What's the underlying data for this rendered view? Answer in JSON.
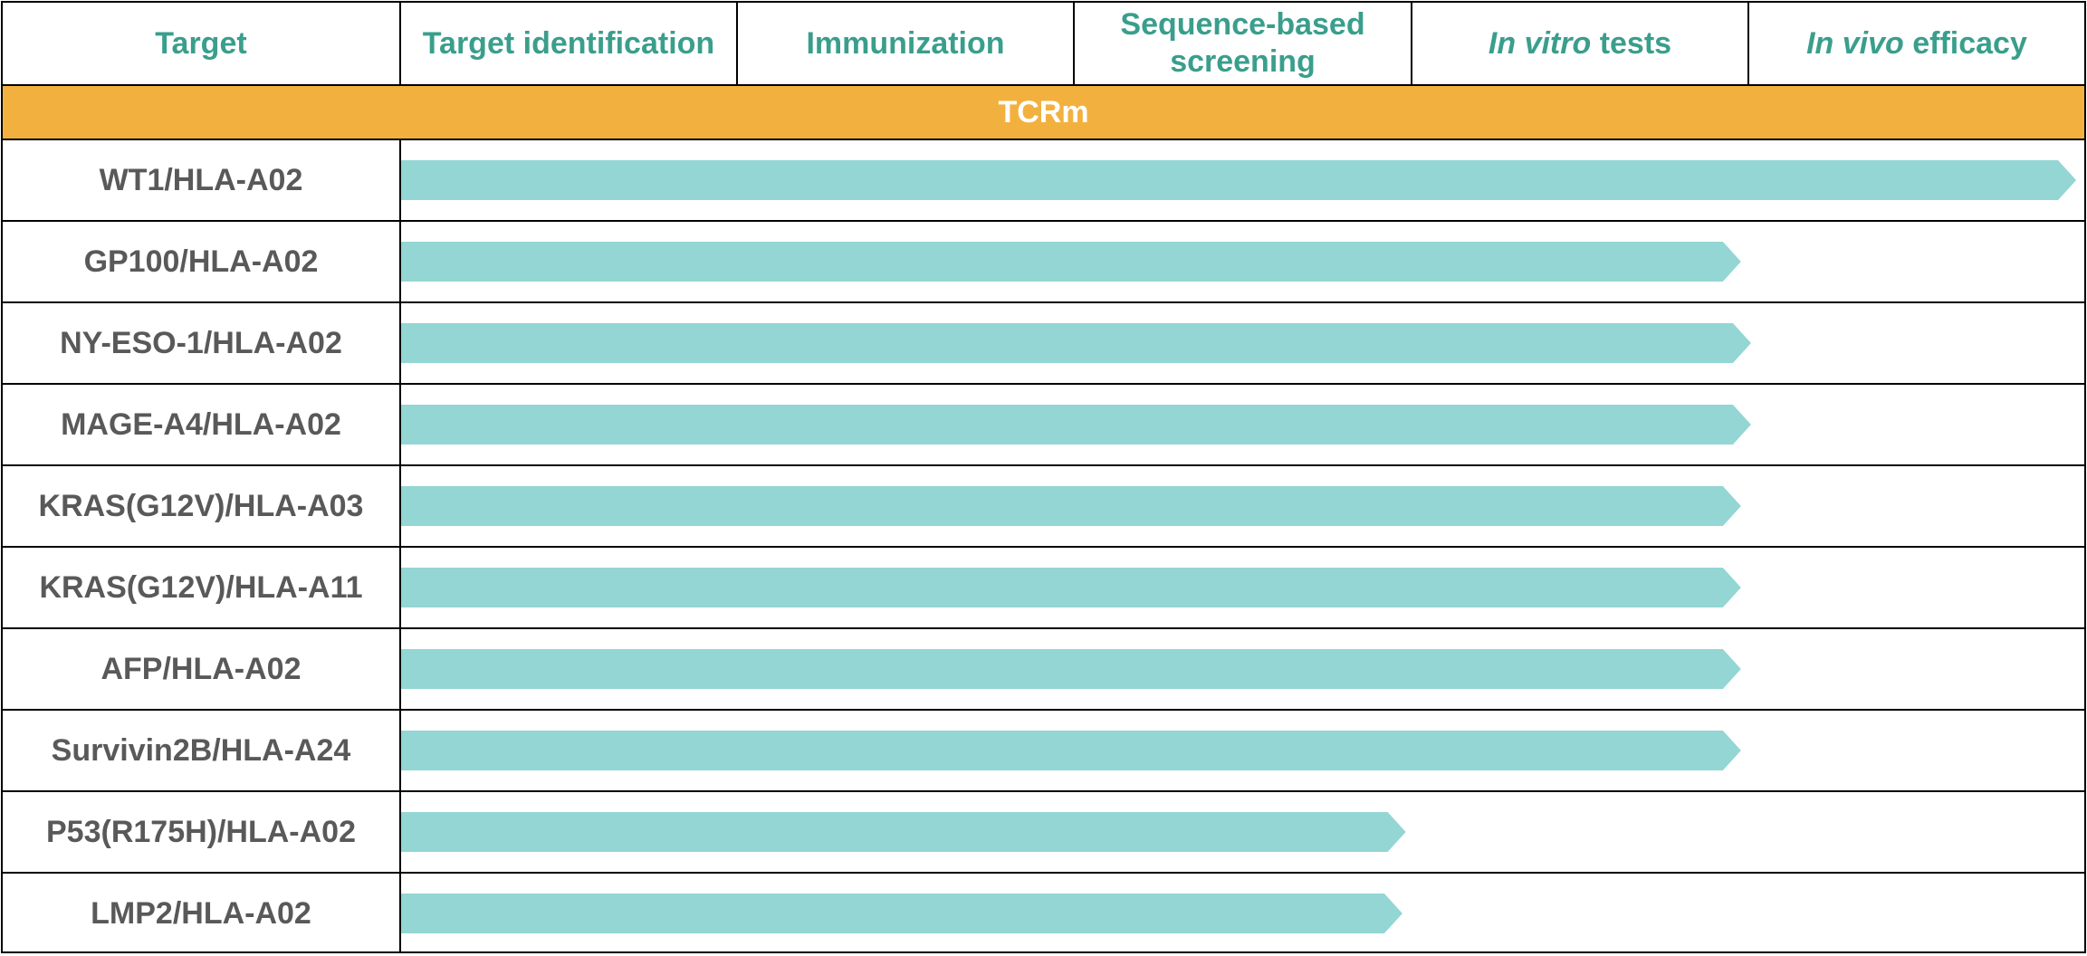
{
  "header": {
    "columns": [
      {
        "text": "Target"
      },
      {
        "text": "Target identification"
      },
      {
        "text": "Immunization"
      },
      {
        "text": "Sequence-based screening"
      },
      {
        "italic": "In vitro",
        "rest": " tests"
      },
      {
        "italic": "In vivo",
        "rest": " efficacy"
      }
    ]
  },
  "band": {
    "label": "TCRm"
  },
  "stages": [
    "Target identification",
    "Immunization",
    "Sequence-based screening",
    "In vitro tests",
    "In vivo efficacy"
  ],
  "rows": [
    {
      "target": "WT1/HLA-A02",
      "progress_stages": 5.0
    },
    {
      "target": "GP100/HLA-A02",
      "progress_stages": 4.0
    },
    {
      "target": "NY-ESO-1/HLA-A02",
      "progress_stages": 4.03
    },
    {
      "target": "MAGE-A4/HLA-A02",
      "progress_stages": 4.03
    },
    {
      "target": "KRAS(G12V)/HLA-A03",
      "progress_stages": 4.0
    },
    {
      "target": "KRAS(G12V)/HLA-A11",
      "progress_stages": 4.0
    },
    {
      "target": "AFP/HLA-A02",
      "progress_stages": 4.0
    },
    {
      "target": "Survivin2B/HLA-A24",
      "progress_stages": 4.0
    },
    {
      "target": "P53(R175H)/HLA-A02",
      "progress_stages": 3.0
    },
    {
      "target": "LMP2/HLA-A02",
      "progress_stages": 2.99
    }
  ],
  "colors": {
    "header_text": "#3a9e8c",
    "band": "#f2b13f",
    "band_text": "#ffffff",
    "arrow": "#93d6d3",
    "row_text": "#595959",
    "grid": "#000000"
  }
}
